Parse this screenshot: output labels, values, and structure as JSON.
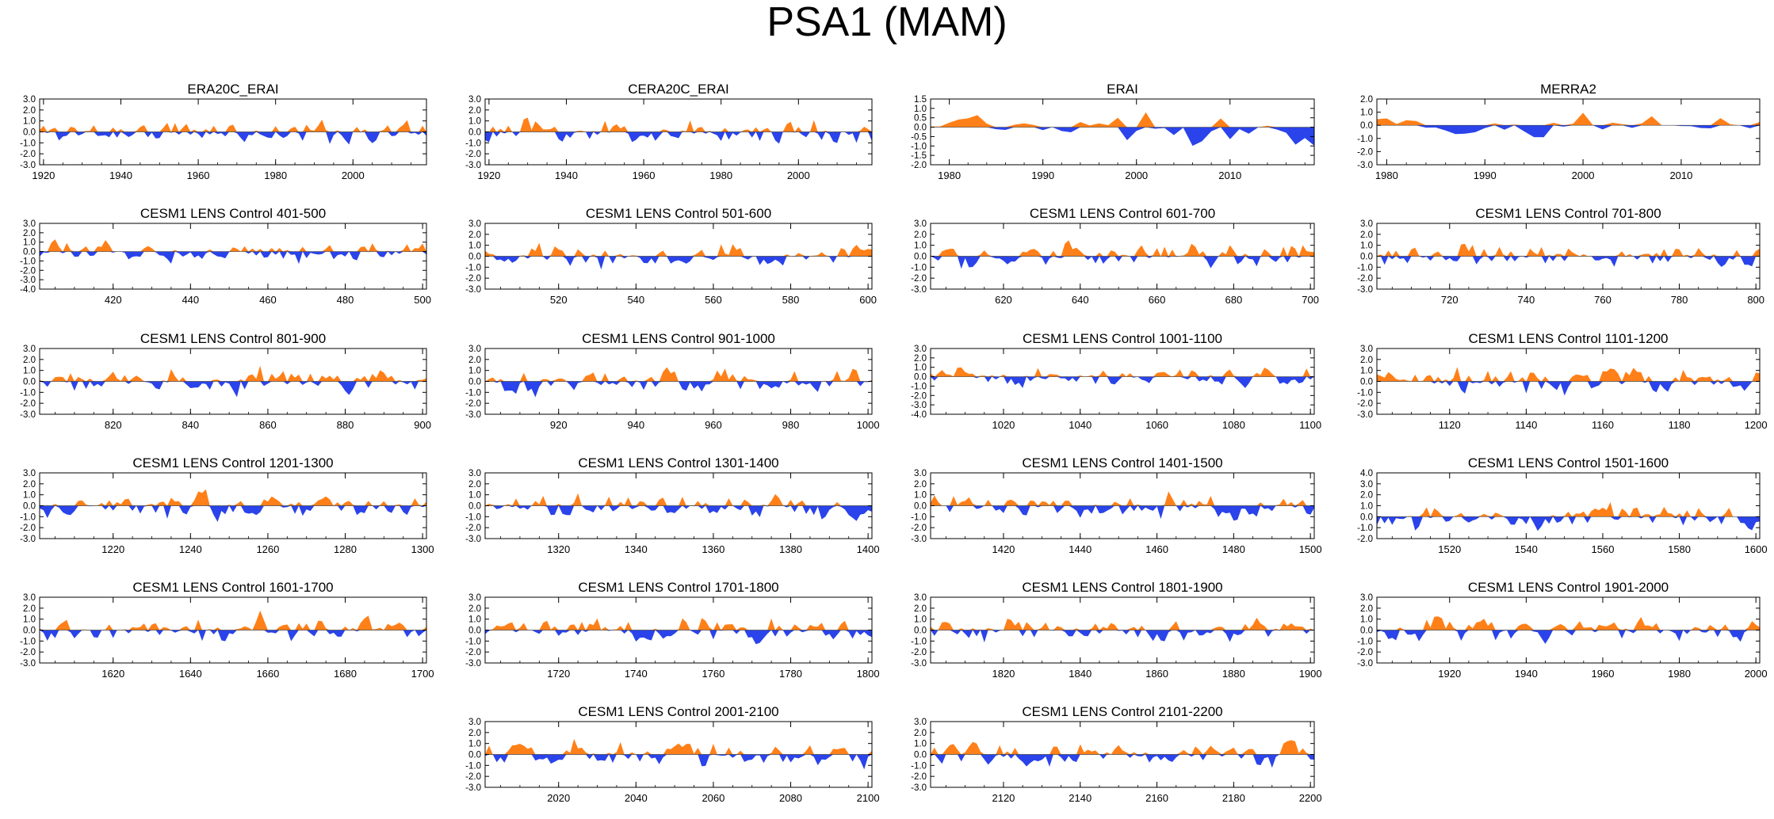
{
  "title": "PSA1 (MAM)",
  "colors": {
    "positive": "#FF8018",
    "negative": "#2A43EA",
    "axis": "#000000"
  },
  "chart_data": [
    {
      "type": "area",
      "title": "ERA20C_ERAI",
      "xlim": [
        1919,
        2019
      ],
      "ylim": [
        -3,
        3
      ],
      "yticks": [
        "3.0",
        "2.0",
        "1.0",
        "0.0",
        "-1.0",
        "-2.0",
        "-3.0"
      ],
      "xticks": [
        "1920",
        "1940",
        "1960",
        "1980",
        "2000"
      ],
      "seed": 11,
      "amp": 1.0
    },
    {
      "type": "area",
      "title": "CERA20C_ERAI",
      "xlim": [
        1919,
        2019
      ],
      "ylim": [
        -3,
        3
      ],
      "yticks": [
        "3.0",
        "2.0",
        "1.0",
        "0.0",
        "-1.0",
        "-2.0",
        "-3.0"
      ],
      "xticks": [
        "1920",
        "1940",
        "1960",
        "1980",
        "2000"
      ],
      "seed": 23,
      "amp": 1.0
    },
    {
      "type": "area",
      "title": "ERAI",
      "xlim": [
        1978,
        2019
      ],
      "ylim": [
        -2,
        1.5
      ],
      "yticks": [
        "1.5",
        "1.0",
        "0.5",
        "0.0",
        "-0.5",
        "-1.0",
        "-1.5",
        "-2.0"
      ],
      "xticks": [
        "1980",
        "1990",
        "2000",
        "2010"
      ],
      "seed": 37,
      "amp": 0.8
    },
    {
      "type": "area",
      "title": "MERRA2",
      "xlim": [
        1979,
        2018
      ],
      "ylim": [
        -3,
        2
      ],
      "yticks": [
        "2.0",
        "1.0",
        "0.0",
        "-1.0",
        "-2.0",
        "-3.0"
      ],
      "xticks": [
        "1980",
        "1990",
        "2000",
        "2010"
      ],
      "seed": 41,
      "amp": 0.9
    },
    {
      "type": "area",
      "title": "CESM1 LENS Control 401-500",
      "xlim": [
        401,
        501
      ],
      "ylim": [
        -4,
        3
      ],
      "yticks": [
        "3.0",
        "2.0",
        "1.0",
        "0.0",
        "-1.0",
        "-2.0",
        "-3.0",
        "-4.0"
      ],
      "xticks": [
        "420",
        "440",
        "460",
        "480",
        "500"
      ],
      "seed": 53,
      "amp": 0.9
    },
    {
      "type": "area",
      "title": "CESM1 LENS Control 501-600",
      "xlim": [
        501,
        601
      ],
      "ylim": [
        -3,
        3
      ],
      "yticks": [
        "3.0",
        "2.0",
        "1.0",
        "0.0",
        "-1.0",
        "-2.0",
        "-3.0"
      ],
      "xticks": [
        "520",
        "540",
        "560",
        "580",
        "600"
      ],
      "seed": 67,
      "amp": 1.0
    },
    {
      "type": "area",
      "title": "CESM1 LENS Control 601-700",
      "xlim": [
        601,
        701
      ],
      "ylim": [
        -3,
        3
      ],
      "yticks": [
        "3.0",
        "2.0",
        "1.0",
        "0.0",
        "-1.0",
        "-2.0",
        "-3.0"
      ],
      "xticks": [
        "620",
        "640",
        "660",
        "680",
        "700"
      ],
      "seed": 71,
      "amp": 1.0
    },
    {
      "type": "area",
      "title": "CESM1 LENS Control 701-800",
      "xlim": [
        701,
        801
      ],
      "ylim": [
        -3,
        3
      ],
      "yticks": [
        "3.0",
        "2.0",
        "1.0",
        "0.0",
        "-1.0",
        "-2.0",
        "-3.0"
      ],
      "xticks": [
        "720",
        "740",
        "760",
        "780",
        "800"
      ],
      "seed": 83,
      "amp": 1.0
    },
    {
      "type": "area",
      "title": "CESM1 LENS Control 801-900",
      "xlim": [
        801,
        901
      ],
      "ylim": [
        -3,
        3
      ],
      "yticks": [
        "3.0",
        "2.0",
        "1.0",
        "0.0",
        "-1.0",
        "-2.0",
        "-3.0"
      ],
      "xticks": [
        "820",
        "840",
        "860",
        "880",
        "900"
      ],
      "seed": 97,
      "amp": 1.0
    },
    {
      "type": "area",
      "title": "CESM1 LENS Control 901-1000",
      "xlim": [
        901,
        1001
      ],
      "ylim": [
        -3,
        3
      ],
      "yticks": [
        "3.0",
        "2.0",
        "1.0",
        "0.0",
        "-1.0",
        "-2.0",
        "-3.0"
      ],
      "xticks": [
        "920",
        "940",
        "960",
        "980",
        "1000"
      ],
      "seed": 101,
      "amp": 1.0
    },
    {
      "type": "area",
      "title": "CESM1 LENS Control 1001-1100",
      "xlim": [
        1001,
        1101
      ],
      "ylim": [
        -4,
        3
      ],
      "yticks": [
        "3.0",
        "2.0",
        "1.0",
        "0.0",
        "-1.0",
        "-2.0",
        "-3.0",
        "-4.0"
      ],
      "xticks": [
        "1020",
        "1040",
        "1060",
        "1080",
        "1100"
      ],
      "seed": 113,
      "amp": 0.9
    },
    {
      "type": "area",
      "title": "CESM1 LENS Control 1101-1200",
      "xlim": [
        1101,
        1201
      ],
      "ylim": [
        -3,
        3
      ],
      "yticks": [
        "3.0",
        "2.0",
        "1.0",
        "0.0",
        "-1.0",
        "-2.0",
        "-3.0"
      ],
      "xticks": [
        "1120",
        "1140",
        "1160",
        "1180",
        "1200"
      ],
      "seed": 127,
      "amp": 1.0
    },
    {
      "type": "area",
      "title": "CESM1 LENS Control 1201-1300",
      "xlim": [
        1201,
        1301
      ],
      "ylim": [
        -3,
        3
      ],
      "yticks": [
        "3.0",
        "2.0",
        "1.0",
        "0.0",
        "-1.0",
        "-2.0",
        "-3.0"
      ],
      "xticks": [
        "1220",
        "1240",
        "1260",
        "1280",
        "1300"
      ],
      "seed": 131,
      "amp": 1.0
    },
    {
      "type": "area",
      "title": "CESM1 LENS Control 1301-1400",
      "xlim": [
        1301,
        1401
      ],
      "ylim": [
        -3,
        3
      ],
      "yticks": [
        "3.0",
        "2.0",
        "1.0",
        "0.0",
        "-1.0",
        "-2.0",
        "-3.0"
      ],
      "xticks": [
        "1320",
        "1340",
        "1360",
        "1380",
        "1400"
      ],
      "seed": 139,
      "amp": 1.0
    },
    {
      "type": "area",
      "title": "CESM1 LENS Control 1401-1500",
      "xlim": [
        1401,
        1501
      ],
      "ylim": [
        -3,
        3
      ],
      "yticks": [
        "3.0",
        "2.0",
        "1.0",
        "0.0",
        "-1.0",
        "-2.0",
        "-3.0"
      ],
      "xticks": [
        "1420",
        "1440",
        "1460",
        "1480",
        "1500"
      ],
      "seed": 149,
      "amp": 1.0
    },
    {
      "type": "area",
      "title": "CESM1 LENS Control 1501-1600",
      "xlim": [
        1501,
        1601
      ],
      "ylim": [
        -2,
        4
      ],
      "yticks": [
        "4.0",
        "3.0",
        "2.0",
        "1.0",
        "0.0",
        "-1.0",
        "-2.0"
      ],
      "xticks": [
        "1520",
        "1540",
        "1560",
        "1580",
        "1600"
      ],
      "seed": 151,
      "amp": 0.9
    },
    {
      "type": "area",
      "title": "CESM1 LENS Control 1601-1700",
      "xlim": [
        1601,
        1701
      ],
      "ylim": [
        -3,
        3
      ],
      "yticks": [
        "3.0",
        "2.0",
        "1.0",
        "0.0",
        "-1.0",
        "-2.0",
        "-3.0"
      ],
      "xticks": [
        "1620",
        "1640",
        "1660",
        "1680",
        "1700"
      ],
      "seed": 163,
      "amp": 1.0
    },
    {
      "type": "area",
      "title": "CESM1 LENS Control 1701-1800",
      "xlim": [
        1701,
        1801
      ],
      "ylim": [
        -3,
        3
      ],
      "yticks": [
        "3.0",
        "2.0",
        "1.0",
        "0.0",
        "-1.0",
        "-2.0",
        "-3.0"
      ],
      "xticks": [
        "1720",
        "1740",
        "1760",
        "1780",
        "1800"
      ],
      "seed": 173,
      "amp": 1.0
    },
    {
      "type": "area",
      "title": "CESM1 LENS Control 1801-1900",
      "xlim": [
        1801,
        1901
      ],
      "ylim": [
        -3,
        3
      ],
      "yticks": [
        "3.0",
        "2.0",
        "1.0",
        "0.0",
        "-1.0",
        "-2.0",
        "-3.0"
      ],
      "xticks": [
        "1820",
        "1840",
        "1860",
        "1880",
        "1900"
      ],
      "seed": 181,
      "amp": 1.0
    },
    {
      "type": "area",
      "title": "CESM1 LENS Control 1901-2000",
      "xlim": [
        1901,
        2001
      ],
      "ylim": [
        -3,
        3
      ],
      "yticks": [
        "3.0",
        "2.0",
        "1.0",
        "0.0",
        "-1.0",
        "-2.0",
        "-3.0"
      ],
      "xticks": [
        "1920",
        "1940",
        "1960",
        "1980",
        "2000"
      ],
      "seed": 191,
      "amp": 1.0
    },
    {
      "type": "area",
      "title": "CESM1 LENS Control 2001-2100",
      "xlim": [
        2001,
        2101
      ],
      "ylim": [
        -3,
        3
      ],
      "yticks": [
        "3.0",
        "2.0",
        "1.0",
        "0.0",
        "-1.0",
        "-2.0",
        "-3.0"
      ],
      "xticks": [
        "2020",
        "2040",
        "2060",
        "2080",
        "2100"
      ],
      "seed": 193,
      "amp": 1.0
    },
    {
      "type": "area",
      "title": "CESM1 LENS Control 2101-2200",
      "xlim": [
        2101,
        2201
      ],
      "ylim": [
        -3,
        3
      ],
      "yticks": [
        "3.0",
        "2.0",
        "1.0",
        "0.0",
        "-1.0",
        "-2.0",
        "-3.0"
      ],
      "xticks": [
        "2120",
        "2140",
        "2160",
        "2180",
        "2200"
      ],
      "seed": 197,
      "amp": 1.0
    }
  ]
}
